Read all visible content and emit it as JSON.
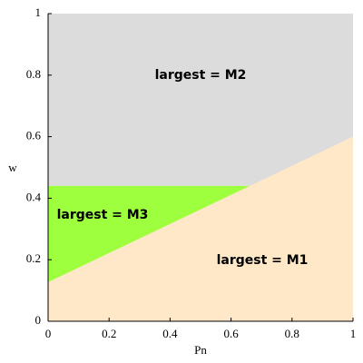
{
  "chart_data": {
    "type": "region",
    "xlabel": "Pn",
    "ylabel": "w",
    "xlim": [
      0,
      1
    ],
    "ylim": [
      0,
      1
    ],
    "xticks": [
      0,
      0.2,
      0.4,
      0.6,
      0.8,
      1
    ],
    "yticks": [
      0,
      0.2,
      0.4,
      0.6,
      0.8,
      1
    ],
    "series": [
      {
        "name": "largest = M2",
        "color": "#dcdcdc",
        "x": [
          0,
          1,
          1,
          0.665,
          0
        ],
        "y": [
          1,
          1,
          0.6,
          0.44,
          0.44
        ]
      },
      {
        "name": "largest = M3",
        "color": "#9eff3e",
        "x": [
          0,
          0.665,
          0
        ],
        "y": [
          0.44,
          0.44,
          0.127
        ]
      },
      {
        "name": "largest = M1",
        "color": "#ffe8c8",
        "x": [
          0,
          1,
          1,
          0
        ],
        "y": [
          0.127,
          0.6,
          0,
          0
        ]
      }
    ]
  }
}
